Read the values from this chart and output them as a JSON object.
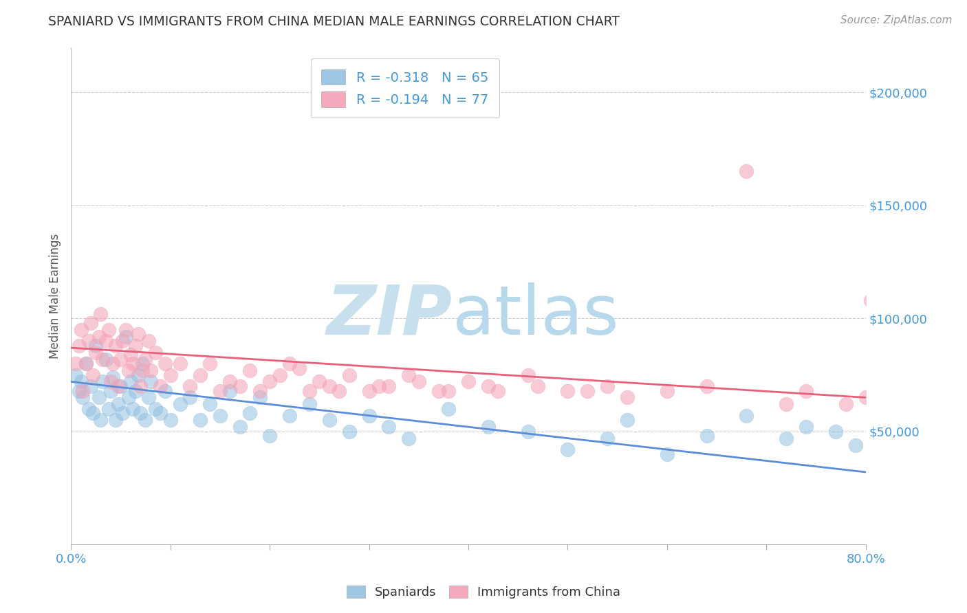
{
  "title": "SPANIARD VS IMMIGRANTS FROM CHINA MEDIAN MALE EARNINGS CORRELATION CHART",
  "source_text": "Source: ZipAtlas.com",
  "ylabel": "Median Male Earnings",
  "right_ytick_labels": [
    "$50,000",
    "$100,000",
    "$150,000",
    "$200,000"
  ],
  "right_ytick_values": [
    50000,
    100000,
    150000,
    200000
  ],
  "xlim": [
    0.0,
    0.8
  ],
  "ylim": [
    0,
    220000
  ],
  "xtick_labels": [
    "0.0%",
    "",
    "",
    "",
    "",
    "",
    "",
    "",
    "80.0%"
  ],
  "xtick_values": [
    0.0,
    0.1,
    0.2,
    0.3,
    0.4,
    0.5,
    0.6,
    0.7,
    0.8
  ],
  "legend_labels_bottom": [
    "Spaniards",
    "Immigrants from China"
  ],
  "blue_color": "#93c0e0",
  "pink_color": "#f4a0b5",
  "blue_line_color": "#5b8dd9",
  "pink_line_color": "#e8607a",
  "watermark_zip_color": "#c8e0ee",
  "watermark_atlas_color": "#b8d8ec",
  "background_color": "#ffffff",
  "grid_color": "#cccccc",
  "title_color": "#333333",
  "axis_label_color": "#555555",
  "right_axis_color": "#4499dd",
  "source_color": "#999999",
  "spaniards_R": -0.318,
  "spaniards_N": 65,
  "china_R": -0.194,
  "china_N": 77,
  "sp_line_y0": 72000,
  "sp_line_y1": 32000,
  "cn_line_y0": 87000,
  "cn_line_y1": 65000,
  "spaniards_x": [
    0.005,
    0.008,
    0.01,
    0.012,
    0.015,
    0.018,
    0.02,
    0.022,
    0.025,
    0.028,
    0.03,
    0.032,
    0.035,
    0.038,
    0.04,
    0.042,
    0.045,
    0.048,
    0.05,
    0.052,
    0.055,
    0.058,
    0.06,
    0.062,
    0.065,
    0.068,
    0.07,
    0.072,
    0.075,
    0.078,
    0.08,
    0.085,
    0.09,
    0.095,
    0.1,
    0.11,
    0.12,
    0.13,
    0.14,
    0.15,
    0.16,
    0.17,
    0.18,
    0.19,
    0.2,
    0.22,
    0.24,
    0.26,
    0.28,
    0.3,
    0.32,
    0.34,
    0.38,
    0.42,
    0.46,
    0.5,
    0.54,
    0.56,
    0.6,
    0.64,
    0.68,
    0.72,
    0.74,
    0.77,
    0.79
  ],
  "spaniards_y": [
    75000,
    68000,
    72000,
    65000,
    80000,
    60000,
    70000,
    58000,
    88000,
    65000,
    55000,
    72000,
    82000,
    60000,
    68000,
    74000,
    55000,
    62000,
    70000,
    58000,
    92000,
    65000,
    72000,
    60000,
    68000,
    75000,
    58000,
    80000,
    55000,
    65000,
    72000,
    60000,
    58000,
    68000,
    55000,
    62000,
    65000,
    55000,
    62000,
    57000,
    68000,
    52000,
    58000,
    65000,
    48000,
    57000,
    62000,
    55000,
    50000,
    57000,
    52000,
    47000,
    60000,
    52000,
    50000,
    42000,
    47000,
    55000,
    40000,
    48000,
    57000,
    47000,
    52000,
    50000,
    44000
  ],
  "china_x": [
    0.005,
    0.008,
    0.01,
    0.012,
    0.015,
    0.018,
    0.02,
    0.022,
    0.025,
    0.028,
    0.03,
    0.032,
    0.035,
    0.038,
    0.04,
    0.042,
    0.045,
    0.048,
    0.05,
    0.052,
    0.055,
    0.058,
    0.06,
    0.062,
    0.065,
    0.068,
    0.07,
    0.072,
    0.075,
    0.078,
    0.08,
    0.085,
    0.09,
    0.095,
    0.1,
    0.11,
    0.12,
    0.13,
    0.14,
    0.15,
    0.16,
    0.17,
    0.18,
    0.19,
    0.2,
    0.22,
    0.24,
    0.26,
    0.28,
    0.3,
    0.32,
    0.34,
    0.38,
    0.42,
    0.46,
    0.5,
    0.54,
    0.6,
    0.64,
    0.68,
    0.72,
    0.74,
    0.78,
    0.8,
    0.805,
    0.21,
    0.23,
    0.25,
    0.27,
    0.31,
    0.35,
    0.37,
    0.4,
    0.43,
    0.47,
    0.52,
    0.56
  ],
  "china_y": [
    80000,
    88000,
    95000,
    68000,
    80000,
    90000,
    98000,
    75000,
    85000,
    92000,
    102000,
    82000,
    90000,
    95000,
    72000,
    80000,
    88000,
    70000,
    82000,
    90000,
    95000,
    77000,
    84000,
    80000,
    88000,
    93000,
    70000,
    77000,
    82000,
    90000,
    77000,
    85000,
    70000,
    80000,
    75000,
    80000,
    70000,
    75000,
    80000,
    68000,
    72000,
    70000,
    77000,
    68000,
    72000,
    80000,
    68000,
    70000,
    75000,
    68000,
    70000,
    75000,
    68000,
    70000,
    75000,
    68000,
    70000,
    68000,
    70000,
    165000,
    62000,
    68000,
    62000,
    65000,
    108000,
    75000,
    78000,
    72000,
    68000,
    70000,
    72000,
    68000,
    72000,
    68000,
    70000,
    68000,
    65000
  ]
}
